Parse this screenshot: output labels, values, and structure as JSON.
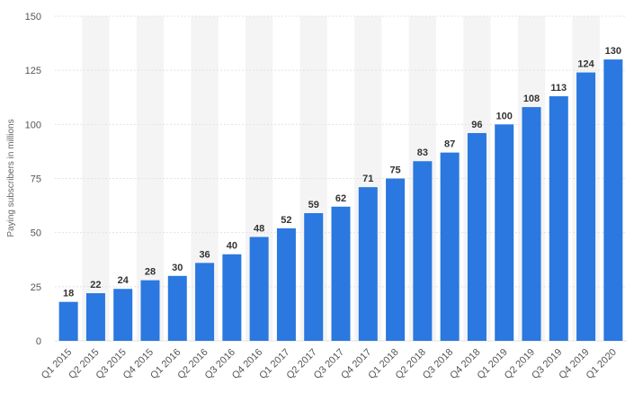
{
  "chart_data": {
    "type": "bar",
    "title": "",
    "xlabel": "",
    "ylabel": "Paying subscribers in millions",
    "categories": [
      "Q1 2015",
      "Q2 2015",
      "Q3 2015",
      "Q4 2015",
      "Q1 2016",
      "Q2 2016",
      "Q3 2016",
      "Q4 2016",
      "Q1 2017",
      "Q2 2017",
      "Q3 2017",
      "Q4 2017",
      "Q1 2018",
      "Q2 2018",
      "Q3 2018",
      "Q4 2018",
      "Q1 2019",
      "Q2 2019",
      "Q3 2019",
      "Q4 2019",
      "Q1 2020"
    ],
    "values": [
      18,
      22,
      24,
      28,
      30,
      36,
      40,
      48,
      52,
      59,
      62,
      71,
      75,
      83,
      87,
      96,
      100,
      108,
      113,
      124,
      130
    ],
    "ylim": [
      0,
      150
    ],
    "yticks": [
      0,
      25,
      50,
      75,
      100,
      125,
      150
    ],
    "grid": true,
    "legend": "none",
    "bar_color": "#2a78e0",
    "stripe_color": "#f4f4f4",
    "grid_color": "#e3e3e3"
  }
}
